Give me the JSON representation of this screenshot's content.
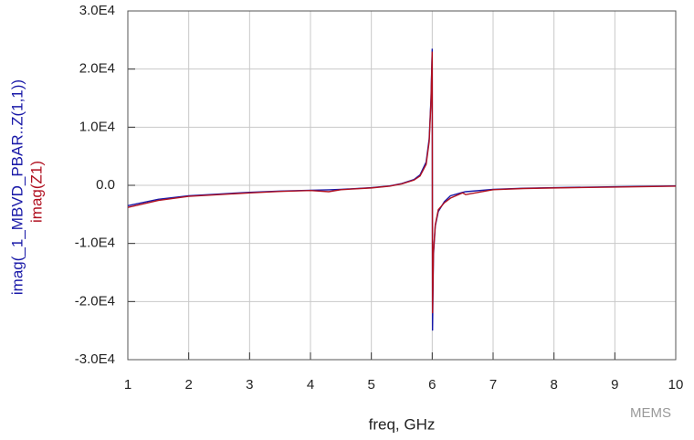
{
  "chart_data": {
    "type": "line",
    "xlabel": "freq, GHz",
    "x": [
      1,
      1.5,
      2,
      2.5,
      3,
      3.5,
      4,
      4.3,
      4.5,
      5,
      5.3,
      5.5,
      5.7,
      5.8,
      5.9,
      5.95,
      5.98,
      6.0,
      6.005,
      6.02,
      6.05,
      6.1,
      6.2,
      6.3,
      6.5,
      6.55,
      7,
      7.5,
      8,
      9,
      10
    ],
    "series": [
      {
        "name": "imag(_1_MBVD_PBAR..Z(1,1))",
        "color": "#1a1aa8",
        "values": [
          -3500,
          -2400,
          -1800,
          -1500,
          -1200,
          -1000,
          -850,
          -780,
          -700,
          -400,
          -100,
          300,
          1000,
          1800,
          4000,
          8000,
          15000,
          23500,
          -25000,
          -12000,
          -7000,
          -4500,
          -2800,
          -1800,
          -1200,
          -1100,
          -700,
          -500,
          -400,
          -250,
          -100
        ]
      },
      {
        "name": "imag(Z1)",
        "color": "#b01020",
        "values": [
          -3800,
          -2600,
          -1900,
          -1600,
          -1300,
          -1050,
          -900,
          -1100,
          -750,
          -450,
          -150,
          250,
          900,
          1600,
          3600,
          7500,
          14500,
          23000,
          -22000,
          -11500,
          -6800,
          -4200,
          -3000,
          -2200,
          -1300,
          -1600,
          -750,
          -550,
          -450,
          -300,
          -150
        ]
      }
    ],
    "xlim": [
      1,
      10
    ],
    "xticks": [
      1,
      2,
      3,
      4,
      5,
      6,
      7,
      8,
      9,
      10
    ],
    "ylim": [
      -30000,
      30000
    ],
    "yticks": [
      {
        "value": -30000,
        "label": "-3.0E4"
      },
      {
        "value": -20000,
        "label": "-2.0E4"
      },
      {
        "value": -10000,
        "label": "-1.0E4"
      },
      {
        "value": 0,
        "label": "0.0"
      },
      {
        "value": 10000,
        "label": "1.0E4"
      },
      {
        "value": 20000,
        "label": "2.0E4"
      },
      {
        "value": 30000,
        "label": "3.0E4"
      }
    ],
    "grid": true,
    "watermark": "MEMS"
  }
}
